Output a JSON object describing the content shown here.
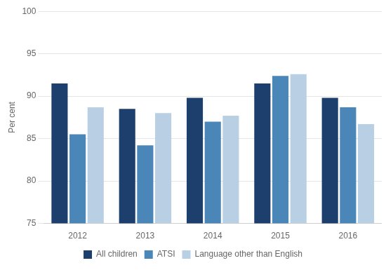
{
  "chart_data": {
    "type": "bar",
    "categories": [
      "2012",
      "2013",
      "2014",
      "2015",
      "2016"
    ],
    "series": [
      {
        "name": "All children",
        "color": "#1c3f6e",
        "values": [
          91.5,
          88.5,
          89.8,
          91.5,
          89.8
        ]
      },
      {
        "name": "ATSI",
        "color": "#4a86b8",
        "values": [
          85.5,
          84.2,
          87.0,
          92.4,
          88.7
        ]
      },
      {
        "name": "Language other than English",
        "color": "#b8cfe4",
        "values": [
          88.7,
          88.0,
          87.7,
          92.6,
          86.7
        ]
      }
    ],
    "ylabel": "Per cent",
    "ylim": [
      75,
      100
    ],
    "yticks": [
      75,
      80,
      85,
      90,
      95,
      100
    ],
    "grid": true,
    "legend": "bottom"
  }
}
